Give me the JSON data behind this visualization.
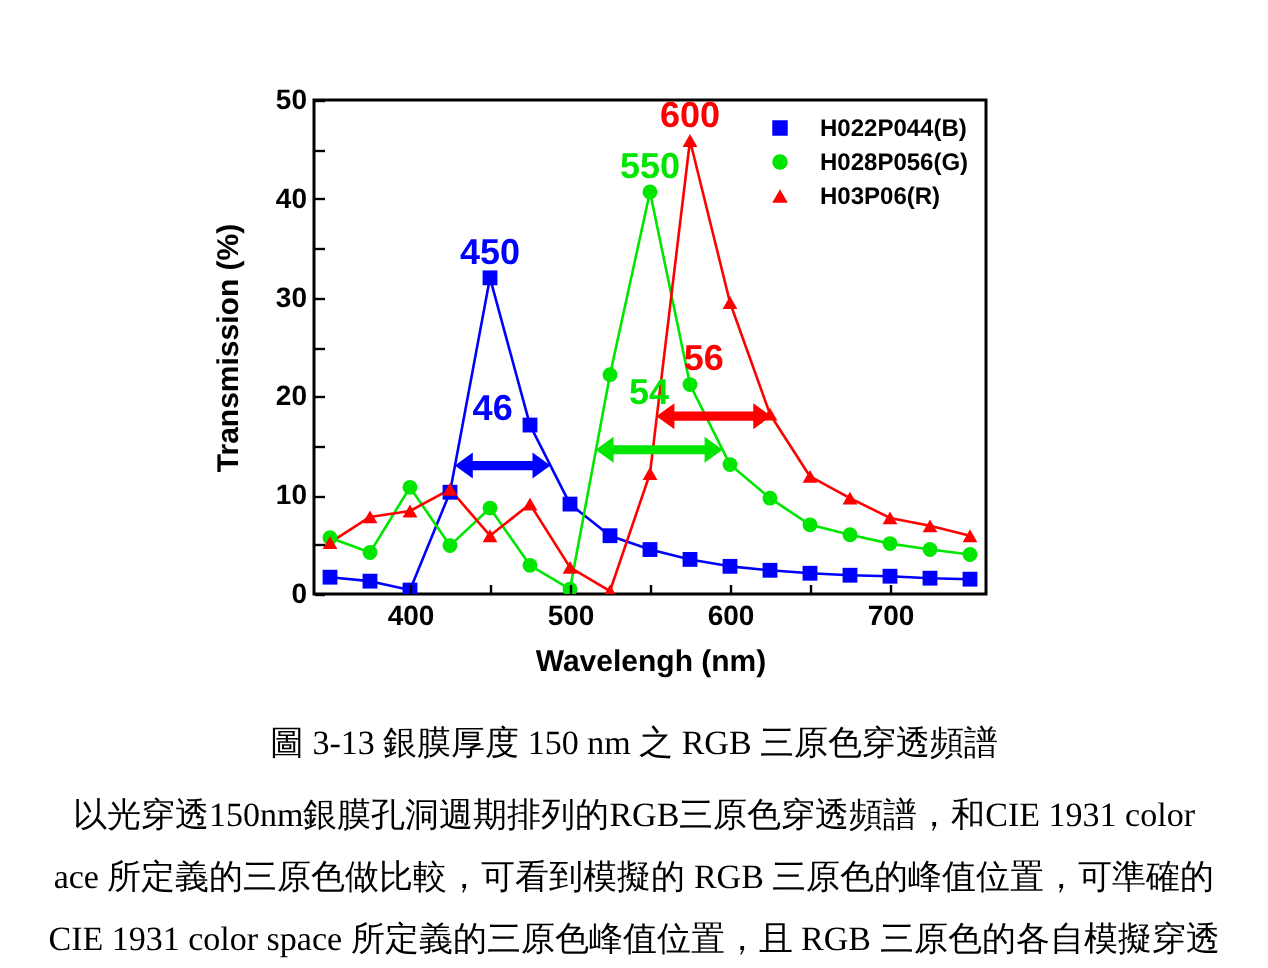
{
  "chart_data": {
    "type": "line",
    "xlabel": "Wavelengh (nm)",
    "ylabel": "Transmission (%)",
    "x": [
      350,
      375,
      400,
      425,
      450,
      475,
      500,
      525,
      550,
      575,
      600,
      625,
      650,
      675,
      700,
      725,
      750
    ],
    "xlim": [
      340,
      760
    ],
    "xticks": [
      400,
      {
        "value": 450,
        "label": null
      },
      500,
      {
        "value": 550,
        "label": null
      },
      600,
      {
        "value": 650,
        "label": null
      },
      700
    ],
    "ylim": [
      0,
      50
    ],
    "yticks": [
      0,
      {
        "value": 5,
        "label": null
      },
      10,
      {
        "value": 15,
        "label": null
      },
      20,
      {
        "value": 25,
        "label": null
      },
      30,
      {
        "value": 35,
        "label": null
      },
      40,
      {
        "value": 45,
        "label": null
      },
      50
    ],
    "series": [
      {
        "name": "H022P044(B)",
        "color": "#0000ff",
        "marker": "square",
        "values": [
          1.7,
          1.3,
          0.4,
          10.3,
          32.0,
          17.1,
          9.1,
          5.9,
          4.5,
          3.5,
          2.8,
          2.4,
          2.1,
          1.9,
          1.8,
          1.6,
          1.5
        ]
      },
      {
        "name": "H028P056(G)",
        "color": "#00e600",
        "marker": "circle",
        "values": [
          5.7,
          4.2,
          10.8,
          4.9,
          8.7,
          2.9,
          0.5,
          22.2,
          40.7,
          21.2,
          13.1,
          9.7,
          7.0,
          6.0,
          5.1,
          4.5,
          4.0
        ]
      },
      {
        "name": "H03P06(R)",
        "color": "#ff0000",
        "marker": "triangle",
        "values": [
          5.2,
          7.8,
          8.4,
          10.6,
          5.9,
          9.1,
          2.7,
          0.3,
          12.2,
          45.9,
          29.5,
          18.2,
          11.9,
          9.7,
          7.7,
          6.9,
          5.9
        ]
      }
    ],
    "line_style": "solid",
    "legend": "top right",
    "annotations": [
      {
        "text": "450",
        "x": 450,
        "y": 32.0
      },
      {
        "text": "46",
        "x": 428,
        "y": 13
      },
      {
        "text": "550",
        "x": 550,
        "y": 40.7
      },
      {
        "text": "54",
        "x": 516,
        "y": 14.6
      },
      {
        "text": "600",
        "x": 575,
        "y": 45.9
      },
      {
        "text": "56",
        "x": 554,
        "y": 18
      },
      "圖 3-13 銀膜厚度 150 nm 之 RGB 三原色穿透頻譜",
      "以光穿透150nm銀膜孔洞週期排列的RGB三原色穿透頻譜，和CIE 1931 color",
      "ace 所定義的三原色做比較，可看到模擬的 RGB 三原色的峰值位置，可準確的",
      "CIE 1931 color space 所定義的三原色峰值位置，且 RGB 三原色的各自模擬穿透"
    ]
  }
}
